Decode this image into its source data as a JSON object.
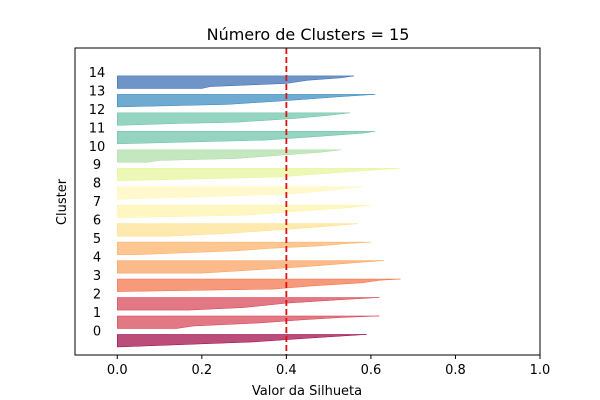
{
  "chart_data": {
    "type": "area",
    "title": "Número de Clusters = 15",
    "xlabel": "Valor da Silhueta",
    "ylabel": "Cluster",
    "xlim": [
      -0.1,
      1.0
    ],
    "x_ticks": [
      "0.0",
      "0.2",
      "0.4",
      "0.6",
      "0.8",
      "1.0"
    ],
    "x_tick_values": [
      0.0,
      0.2,
      0.4,
      0.6,
      0.8,
      1.0
    ],
    "grid": false,
    "reference_line": {
      "x": 0.4,
      "color": "#dd1111",
      "style": "dashed"
    },
    "clusters": [
      {
        "label": "0",
        "color": "#9e0142",
        "profile": [
          [
            0.0,
            0.59
          ],
          [
            0.3,
            0.45
          ],
          [
            0.6,
            0.32
          ],
          [
            1.0,
            0.0
          ]
        ]
      },
      {
        "label": "1",
        "color": "#d53e4f",
        "profile": [
          [
            0.0,
            0.62
          ],
          [
            0.12,
            0.53
          ],
          [
            0.3,
            0.44
          ],
          [
            0.55,
            0.34
          ],
          [
            0.8,
            0.18
          ],
          [
            1.0,
            0.14
          ]
        ]
      },
      {
        "label": "2",
        "color": "#d53e4f",
        "profile": [
          [
            0.0,
            0.62
          ],
          [
            0.15,
            0.54
          ],
          [
            0.45,
            0.4
          ],
          [
            0.8,
            0.3
          ],
          [
            1.0,
            0.17
          ]
        ]
      },
      {
        "label": "3",
        "color": "#f46d43",
        "profile": [
          [
            0.0,
            0.67
          ],
          [
            0.1,
            0.62
          ],
          [
            0.3,
            0.58
          ],
          [
            0.55,
            0.46
          ],
          [
            0.8,
            0.37
          ],
          [
            1.0,
            0.0
          ]
        ]
      },
      {
        "label": "4",
        "color": "#f99d59",
        "profile": [
          [
            0.0,
            0.63
          ],
          [
            0.15,
            0.57
          ],
          [
            0.45,
            0.46
          ],
          [
            0.8,
            0.3
          ],
          [
            1.0,
            0.2
          ]
        ]
      },
      {
        "label": "5",
        "color": "#fdae61",
        "profile": [
          [
            0.0,
            0.6
          ],
          [
            0.12,
            0.54
          ],
          [
            0.3,
            0.48
          ],
          [
            0.5,
            0.36
          ],
          [
            0.7,
            0.28
          ],
          [
            0.85,
            0.16
          ],
          [
            1.0,
            0.05
          ]
        ]
      },
      {
        "label": "6",
        "color": "#fee08b",
        "profile": [
          [
            0.0,
            0.57
          ],
          [
            0.2,
            0.5
          ],
          [
            0.5,
            0.38
          ],
          [
            0.8,
            0.25
          ],
          [
            1.0,
            0.12
          ]
        ]
      },
      {
        "label": "7",
        "color": "#fff3a6",
        "profile": [
          [
            0.0,
            0.6
          ],
          [
            0.2,
            0.55
          ],
          [
            0.5,
            0.42
          ],
          [
            0.8,
            0.3
          ],
          [
            1.0,
            0.0
          ]
        ]
      },
      {
        "label": "8",
        "color": "#fff7b8",
        "profile": [
          [
            0.0,
            0.58
          ],
          [
            0.3,
            0.5
          ],
          [
            0.6,
            0.4
          ],
          [
            1.0,
            0.0
          ]
        ]
      },
      {
        "label": "9",
        "color": "#e6f598",
        "profile": [
          [
            0.0,
            0.67
          ],
          [
            0.15,
            0.6
          ],
          [
            0.4,
            0.5
          ],
          [
            0.7,
            0.38
          ],
          [
            1.0,
            0.0
          ]
        ]
      },
      {
        "label": "10",
        "color": "#abdda4",
        "profile": [
          [
            0.0,
            0.53
          ],
          [
            0.2,
            0.48
          ],
          [
            0.45,
            0.38
          ],
          [
            0.7,
            0.28
          ],
          [
            0.85,
            0.1
          ],
          [
            1.0,
            0.07
          ]
        ]
      },
      {
        "label": "11",
        "color": "#66c2a5",
        "profile": [
          [
            0.0,
            0.61
          ],
          [
            0.15,
            0.58
          ],
          [
            0.4,
            0.48
          ],
          [
            0.7,
            0.35
          ],
          [
            1.0,
            0.0
          ]
        ]
      },
      {
        "label": "12",
        "color": "#66c2a5",
        "profile": [
          [
            0.0,
            0.55
          ],
          [
            0.2,
            0.5
          ],
          [
            0.45,
            0.42
          ],
          [
            0.75,
            0.28
          ],
          [
            0.85,
            0.14
          ],
          [
            1.0,
            0.0
          ]
        ]
      },
      {
        "label": "13",
        "color": "#3288bd",
        "profile": [
          [
            0.0,
            0.61
          ],
          [
            0.2,
            0.52
          ],
          [
            0.5,
            0.4
          ],
          [
            0.8,
            0.26
          ],
          [
            1.0,
            0.0
          ]
        ]
      },
      {
        "label": "14",
        "color": "#3268b0",
        "profile": [
          [
            0.0,
            0.56
          ],
          [
            0.15,
            0.53
          ],
          [
            0.35,
            0.45
          ],
          [
            0.6,
            0.4
          ],
          [
            0.85,
            0.22
          ],
          [
            1.0,
            0.2
          ]
        ]
      }
    ]
  }
}
